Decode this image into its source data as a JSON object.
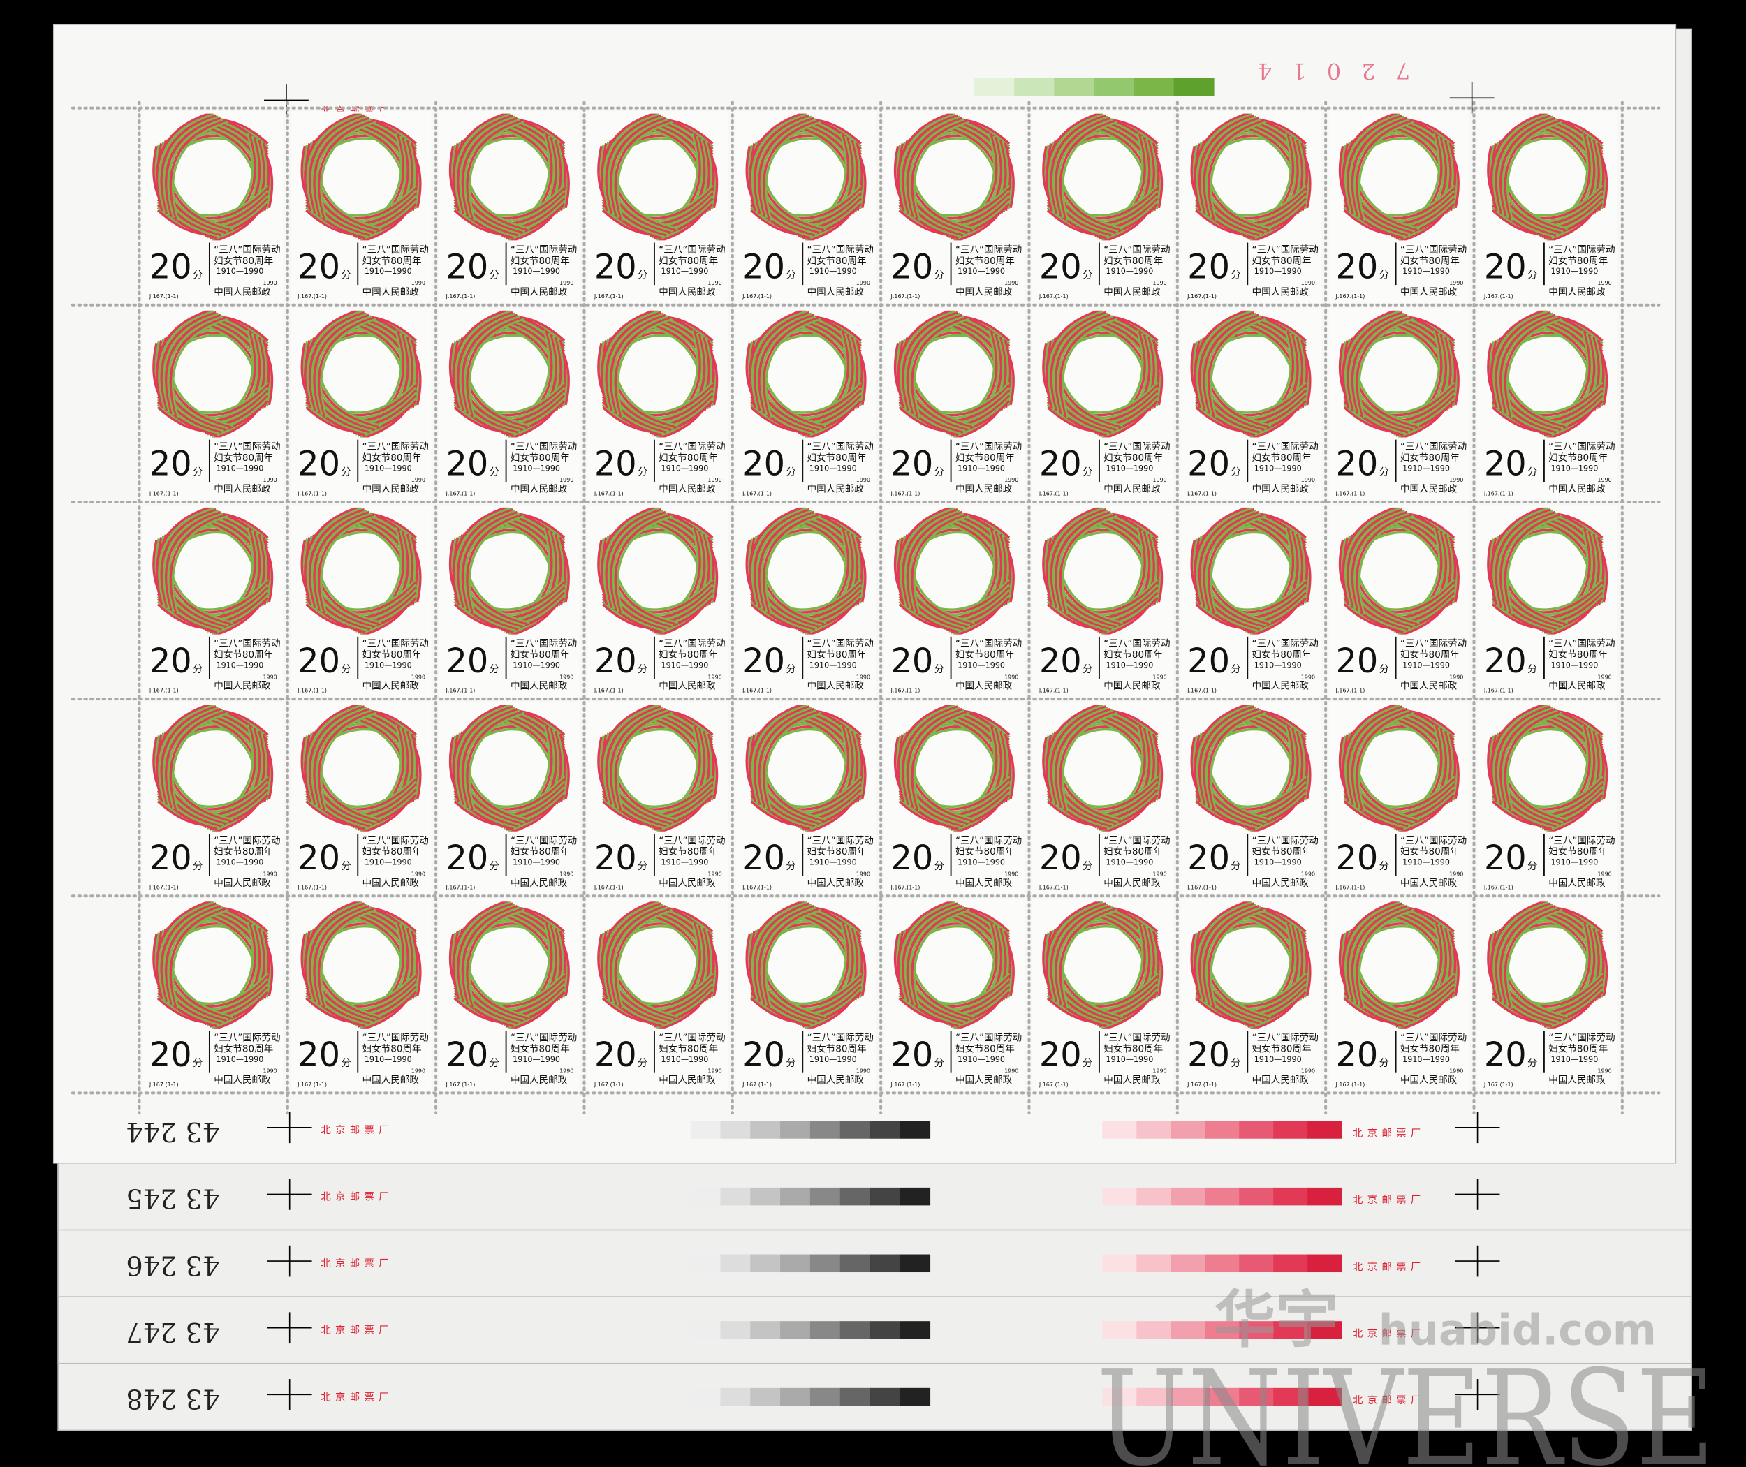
{
  "sheet_numbers": [
    "43 244",
    "43 245",
    "43 246",
    "43 247",
    "43 248"
  ],
  "top_number": "7 2 0 1 4",
  "imprint": "北京邮票厂",
  "stamp": {
    "value": "20",
    "unit": "分",
    "title_line1": "“三八”国际劳动",
    "title_line2": "妇女节80周年",
    "years": "1910—1990",
    "country": "中国人民邮政",
    "code": "J.167.(1-1)",
    "year": "1990"
  },
  "watermark": {
    "brand": "华宇",
    "site": "huabid.com",
    "logo": "UNIVERSE"
  }
}
